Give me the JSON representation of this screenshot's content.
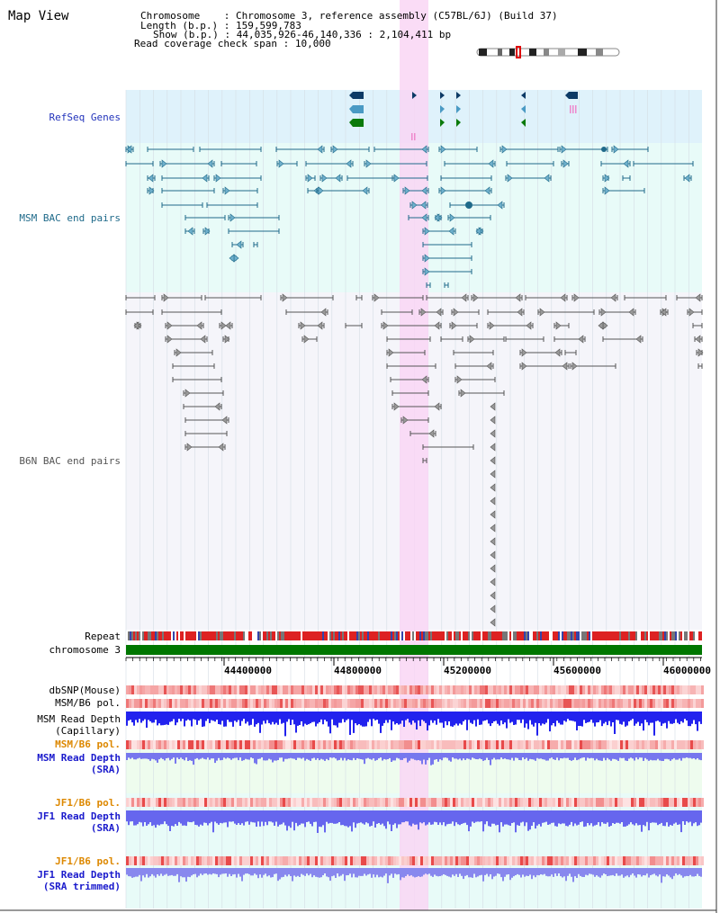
{
  "view_title": "Map View",
  "header": {
    "chromosome_key": "Chromosome",
    "chromosome_value": "Chromosome 3, reference assembly (C57BL/6J) (Build 37)",
    "length_key": "Length (b.p.)",
    "length_value": "159,599,783",
    "show_key": "Show (b.p.)",
    "show_value": "44,035,926-46,140,336 : 2,104,411 bp",
    "coverage_key": "Read coverage check span",
    "coverage_value": "10,000"
  },
  "tracks": {
    "refseq": "RefSeq Genes",
    "msm_bac": "MSM BAC end pairs",
    "b6n_bac": "B6N BAC end pairs",
    "repeat": "Repeat",
    "chromosome": "chromosome 3",
    "dbsnp": "dbSNP(Mouse)",
    "msm_b6_pol_cap": "MSM/B6 pol.",
    "msm_depth_cap_1": "MSM Read Depth",
    "msm_depth_cap_2": "(Capillary)",
    "msm_b6_pol_sra": "MSM/B6 pol.",
    "msm_depth_sra_1": "MSM Read Depth",
    "msm_depth_sra_2": "(SRA)",
    "jf1_pol_sra": "JF1/B6 pol.",
    "jf1_depth_sra_1": "JF1 Read Depth",
    "jf1_depth_sra_2": "(SRA)",
    "jf1_pol_trim": "JF1/B6 pol.",
    "jf1_depth_trim_1": "JF1 Read Depth",
    "jf1_depth_trim_2": "(SRA trimmed)"
  },
  "axis": {
    "ticks": [
      "44400000",
      "44800000",
      "45200000",
      "45600000",
      "46000000"
    ]
  },
  "colors": {
    "refseq_bg": "#dff2fb",
    "bac_bg": "#e8fbf8",
    "b6n_bg": "#f5f5fa",
    "highlight": "#f9d6f4",
    "refseq_label": "#2233bb",
    "msm_label": "#1f6a8a",
    "b6n_label": "#555555",
    "orange_label": "#dd8800",
    "blue_label": "#1a1acc",
    "repeat_red": "#dd2222",
    "chromosome_green": "#007700",
    "depth_blue": "#2222ee"
  }
}
